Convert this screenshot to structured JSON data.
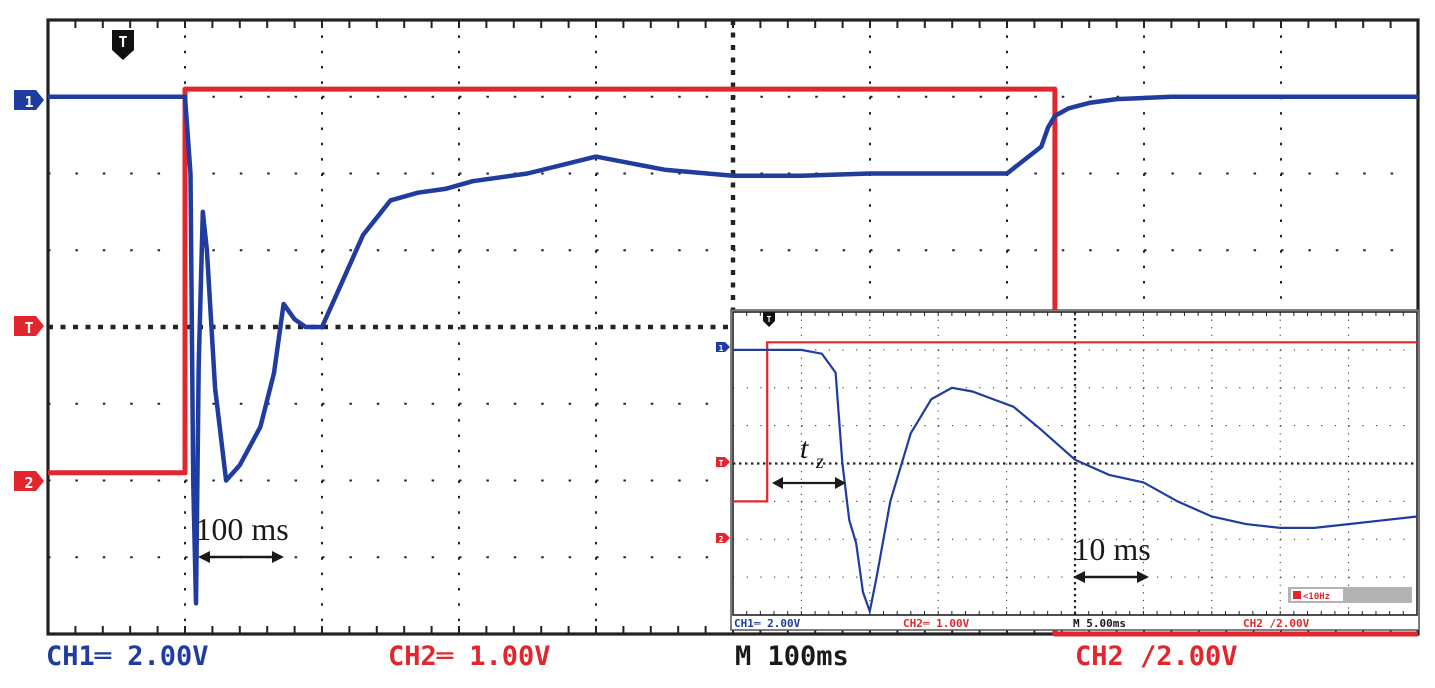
{
  "colors": {
    "ch1": "#1f3c9e",
    "ch2": "#e1272d",
    "grid": "#222222",
    "trigger_marker": "#111111",
    "text_dark": "#1a1a1a"
  },
  "markers": {
    "trigger_top": "T",
    "ch1": "1",
    "ch2": "2",
    "trigger_level": "T"
  },
  "status_bar": {
    "ch1": "CH1═ 2.00V",
    "ch2": "CH2═ 1.00V",
    "timebase": "M 100ms",
    "trigger": "CH2 ∕2.00V"
  },
  "annotations": {
    "main_scale": "100 ms",
    "inset_scale": "10 ms",
    "inset_tz": "t",
    "inset_tz_sub": "z"
  },
  "inset": {
    "markers": {
      "trigger_top": "T",
      "ch1": "1",
      "ch2": "2",
      "trigger_level": "T"
    },
    "status_bar": {
      "ch1": "CH1═ 2.00V",
      "ch2": "CH2═ 1.00V",
      "timebase": "M 5.00ms",
      "trigger": "CH2 ∕2.00V",
      "filter": "<10Hz"
    }
  },
  "chart_data": [
    {
      "type": "line",
      "x_units": "divisions",
      "y_units": "divisions",
      "xlim": [
        0,
        10
      ],
      "ylim": [
        -4,
        4
      ],
      "grid": true,
      "series": [
        {
          "name": "CH1",
          "x": [
            0,
            1.0,
            1.04,
            1.06,
            1.08,
            1.1,
            1.13,
            1.16,
            1.22,
            1.3,
            1.4,
            1.55,
            1.65,
            1.72,
            1.8,
            1.88,
            2.0,
            2.15,
            2.3,
            2.5,
            2.7,
            2.9,
            3.1,
            3.5,
            4.0,
            4.5,
            5.0,
            5.5,
            6.0,
            6.5,
            7.0,
            7.25,
            7.3,
            7.35,
            7.45,
            7.6,
            7.8,
            8.2,
            9.0,
            10.0
          ],
          "y": [
            3.0,
            3.0,
            2.0,
            -2.0,
            -3.6,
            -0.5,
            1.5,
            1.0,
            -0.8,
            -2.0,
            -1.8,
            -1.3,
            -0.6,
            0.3,
            0.1,
            0.0,
            0.0,
            0.6,
            1.2,
            1.65,
            1.75,
            1.8,
            1.9,
            2.0,
            2.22,
            2.05,
            1.97,
            1.97,
            2.0,
            2.0,
            2.0,
            2.35,
            2.6,
            2.75,
            2.85,
            2.92,
            2.97,
            3.0,
            3.0,
            3.0
          ]
        },
        {
          "name": "CH2",
          "x": [
            0,
            1.0,
            1.0,
            7.35,
            7.35,
            10.0
          ],
          "y": [
            -1.9,
            -1.9,
            3.1,
            3.1,
            -4.0,
            -4.0
          ]
        }
      ]
    },
    {
      "type": "line",
      "x_units": "divisions",
      "y_units": "divisions",
      "xlim": [
        0,
        10
      ],
      "ylim": [
        -4,
        4
      ],
      "grid": true,
      "series": [
        {
          "name": "CH1",
          "x": [
            0,
            1.0,
            1.3,
            1.5,
            1.6,
            1.7,
            1.8,
            1.9,
            2.0,
            2.1,
            2.3,
            2.6,
            2.9,
            3.2,
            3.5,
            3.8,
            4.1,
            4.5,
            5.0,
            5.5,
            6.0,
            6.5,
            7.0,
            7.5,
            8.0,
            8.5,
            9.0,
            9.5,
            10.0
          ],
          "y": [
            3.0,
            3.0,
            2.9,
            2.4,
            0.0,
            -1.5,
            -2.1,
            -3.4,
            -3.9,
            -3.0,
            -1.0,
            0.8,
            1.7,
            2.0,
            1.9,
            1.7,
            1.5,
            0.9,
            0.1,
            -0.3,
            -0.5,
            -1.0,
            -1.4,
            -1.6,
            -1.7,
            -1.7,
            -1.6,
            -1.5,
            -1.4
          ]
        },
        {
          "name": "CH2",
          "x": [
            0,
            0.5,
            0.5,
            10.0
          ],
          "y": [
            -1.0,
            -1.0,
            3.2,
            3.2
          ]
        }
      ]
    }
  ]
}
